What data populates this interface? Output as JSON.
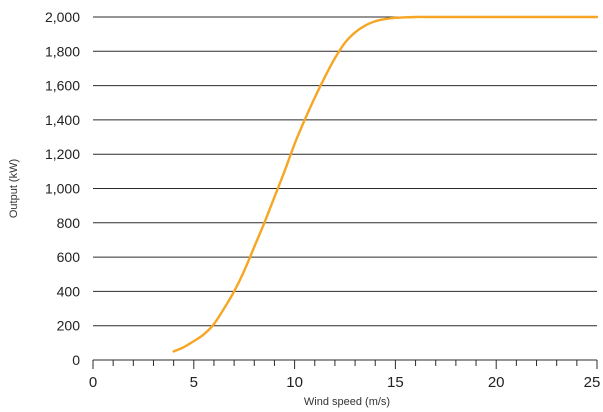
{
  "chart_data": {
    "type": "line",
    "title": "",
    "xlabel": "Wind speed (m/s)",
    "ylabel": "Output (kW)",
    "xlim": [
      0,
      25
    ],
    "ylim": [
      0,
      2000
    ],
    "xticks": [
      0,
      5,
      10,
      15,
      20,
      25
    ],
    "xtick_labels": [
      "0",
      "5",
      "10",
      "15",
      "20",
      "25"
    ],
    "yticks": [
      0,
      200,
      400,
      600,
      800,
      1000,
      1200,
      1400,
      1600,
      1800,
      2000
    ],
    "ytick_labels": [
      "0",
      "200",
      "400",
      "600",
      "800",
      "1,000",
      "1,200",
      "1,400",
      "1,600",
      "1,800",
      "2,000"
    ],
    "grid": "horizontal",
    "series": [
      {
        "color": "#f6a623",
        "x": [
          4,
          4.5,
          5,
          5.5,
          6,
          6.5,
          7,
          7.5,
          8,
          8.5,
          9,
          9.5,
          10,
          10.5,
          11,
          11.5,
          12,
          12.5,
          13,
          13.5,
          14,
          14.5,
          15,
          15.5,
          16,
          16.5,
          17,
          18,
          20,
          22,
          25
        ],
        "y": [
          50,
          75,
          110,
          150,
          210,
          300,
          400,
          520,
          660,
          800,
          950,
          1100,
          1260,
          1400,
          1530,
          1650,
          1760,
          1850,
          1910,
          1950,
          1975,
          1988,
          1995,
          1998,
          2000,
          2000,
          2000,
          2000,
          2000,
          2000,
          2000
        ]
      }
    ]
  }
}
